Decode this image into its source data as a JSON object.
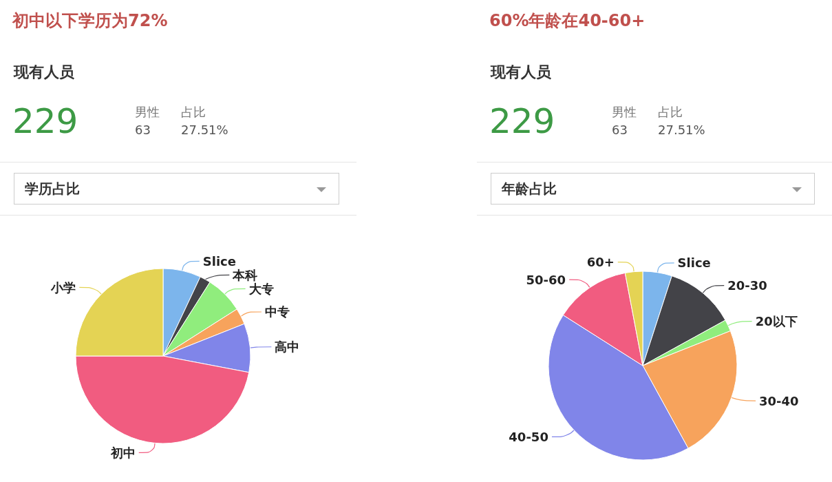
{
  "chart_data": [
    {
      "type": "pie",
      "title": "初中以下学历为72%",
      "annotations": [
        "现有人员",
        "229",
        "男性",
        "63",
        "占比",
        "27.51%",
        "学历占比"
      ],
      "categories": [
        "Slice",
        "本科",
        "大专",
        "中专",
        "高中",
        "初中",
        "小学"
      ],
      "values": [
        7,
        2,
        7,
        3,
        9,
        47,
        25
      ],
      "colors": [
        "#7cb5ec",
        "#434348",
        "#90ed7d",
        "#f7a35c",
        "#8085e9",
        "#f15c80",
        "#e4d354"
      ]
    },
    {
      "type": "pie",
      "title": "60%年龄在40-60+",
      "annotations": [
        "现有人员",
        "229",
        "男性",
        "63",
        "占比",
        "27.51%",
        "年龄占比"
      ],
      "categories": [
        "Slice",
        "20-30",
        "20以下",
        "30-40",
        "40-50",
        "50-60",
        "60+"
      ],
      "values": [
        5,
        12,
        2,
        23,
        42,
        13,
        3
      ],
      "colors": [
        "#7cb5ec",
        "#434348",
        "#90ed7d",
        "#f7a35c",
        "#8085e9",
        "#f15c80",
        "#e4d354"
      ]
    }
  ]
}
